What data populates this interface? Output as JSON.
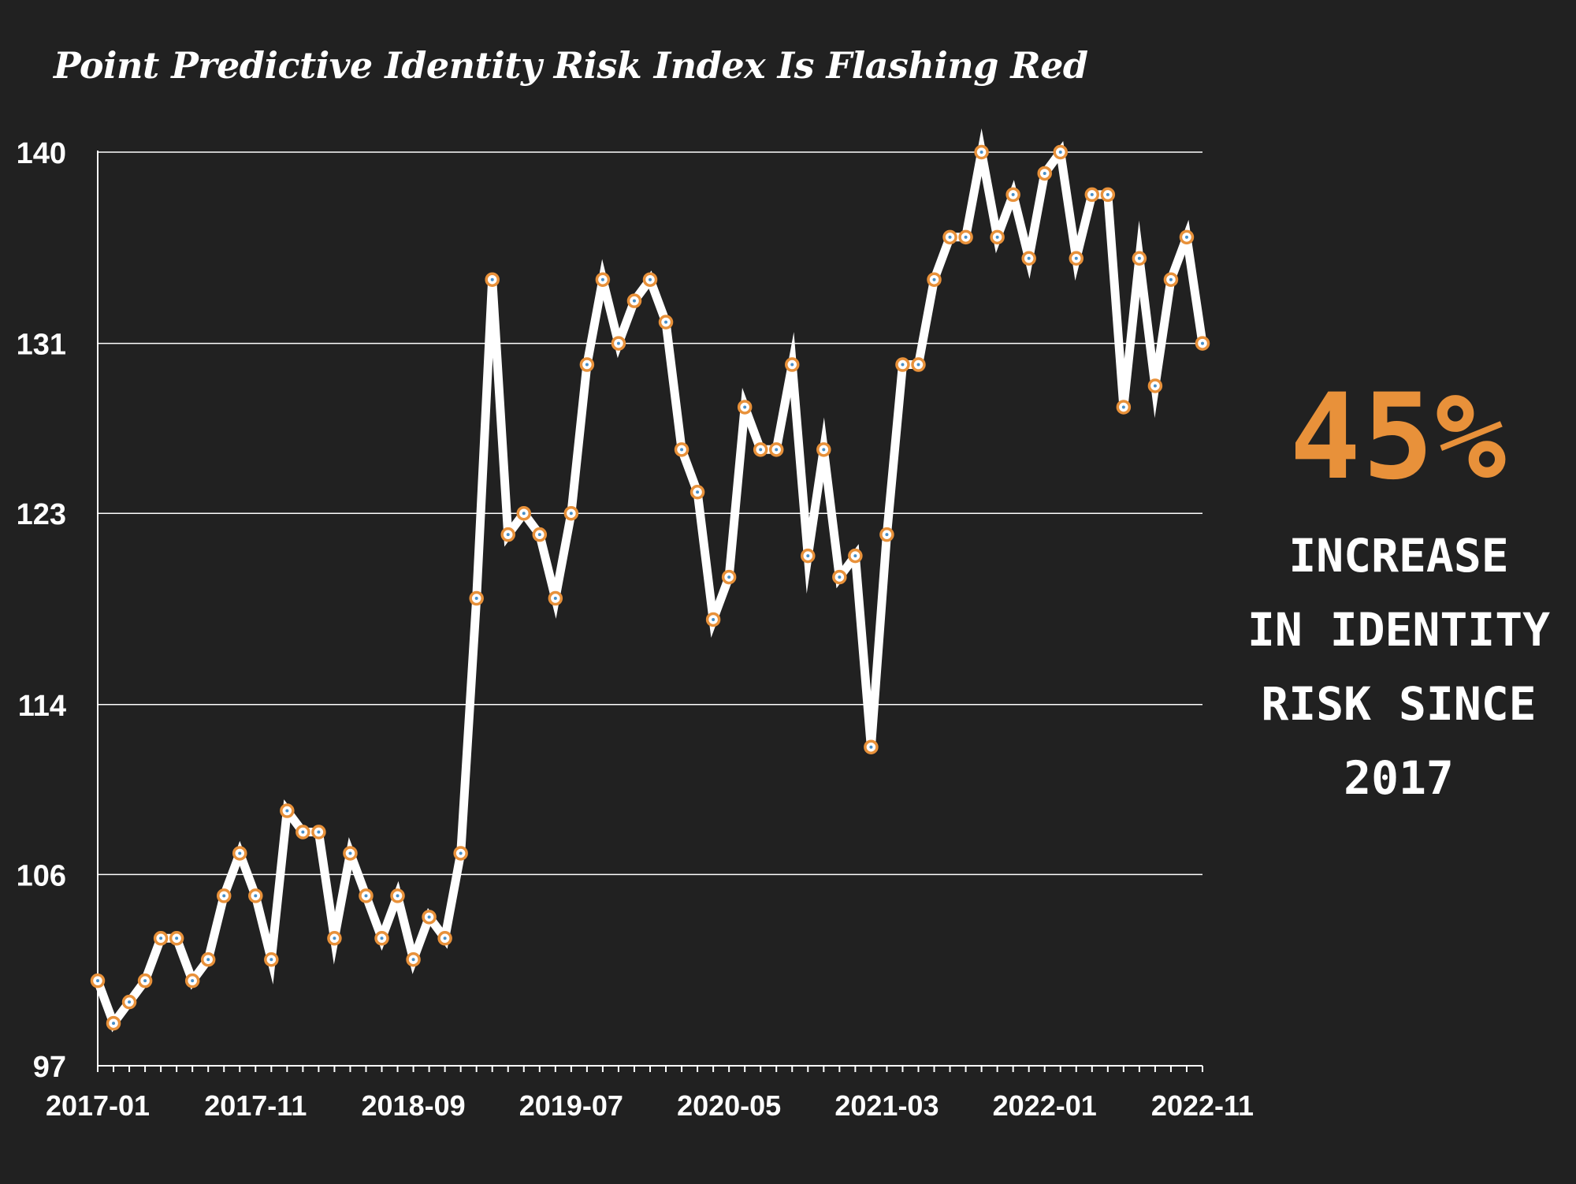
{
  "chart_data": {
    "type": "line",
    "title": "Point Predictive Identity Risk Index Is Flashing Red",
    "xlabel": "",
    "ylabel": "",
    "ylim": [
      97,
      140
    ],
    "y_ticks": [
      97,
      106,
      114,
      123,
      131,
      140
    ],
    "x_tick_labels": [
      "2017-01",
      "2017-11",
      "2018-09",
      "2019-07",
      "2020-05",
      "2021-03",
      "2022-01",
      "2022-11"
    ],
    "grid": "horizontal",
    "colors": {
      "line": "#ffffff",
      "marker": "#e8913a",
      "grid": "#ffffff",
      "background": "#212121"
    },
    "x": [
      "2017-01",
      "2017-02",
      "2017-03",
      "2017-04",
      "2017-05",
      "2017-06",
      "2017-07",
      "2017-08",
      "2017-09",
      "2017-10",
      "2017-11",
      "2017-12",
      "2018-01",
      "2018-02",
      "2018-03",
      "2018-04",
      "2018-05",
      "2018-06",
      "2018-07",
      "2018-08",
      "2018-09",
      "2018-10",
      "2018-11",
      "2018-12",
      "2019-01",
      "2019-02",
      "2019-03",
      "2019-04",
      "2019-05",
      "2019-06",
      "2019-07",
      "2019-08",
      "2019-09",
      "2019-10",
      "2019-11",
      "2019-12",
      "2020-01",
      "2020-02",
      "2020-03",
      "2020-04",
      "2020-05",
      "2020-06",
      "2020-07",
      "2020-08",
      "2020-09",
      "2020-10",
      "2020-11",
      "2020-12",
      "2021-01",
      "2021-02",
      "2021-03",
      "2021-04",
      "2021-05",
      "2021-06",
      "2021-07",
      "2021-08",
      "2021-09",
      "2021-10",
      "2021-11",
      "2021-12",
      "2022-01",
      "2022-02",
      "2022-03",
      "2022-04",
      "2022-05",
      "2022-06",
      "2022-07",
      "2022-08",
      "2022-09",
      "2022-10",
      "2022-11"
    ],
    "series": [
      {
        "values": [
          101,
          99,
          100,
          101,
          103,
          103,
          101,
          102,
          105,
          107,
          105,
          102,
          109,
          108,
          108,
          103,
          107,
          105,
          103,
          105,
          102,
          104,
          103,
          107,
          119,
          134,
          122,
          123,
          122,
          119,
          123,
          130,
          134,
          131,
          133,
          134,
          132,
          126,
          124,
          118,
          120,
          128,
          126,
          126,
          130,
          121,
          126,
          120,
          121,
          112,
          122,
          130,
          130,
          134,
          136,
          136,
          140,
          136,
          138,
          135,
          139,
          140,
          135,
          138,
          138,
          128,
          135,
          129,
          134,
          136,
          131
        ]
      }
    ]
  },
  "callout": {
    "value": "45%",
    "text": "INCREASE\nIN IDENTITY\nRISK SINCE\n2017"
  }
}
